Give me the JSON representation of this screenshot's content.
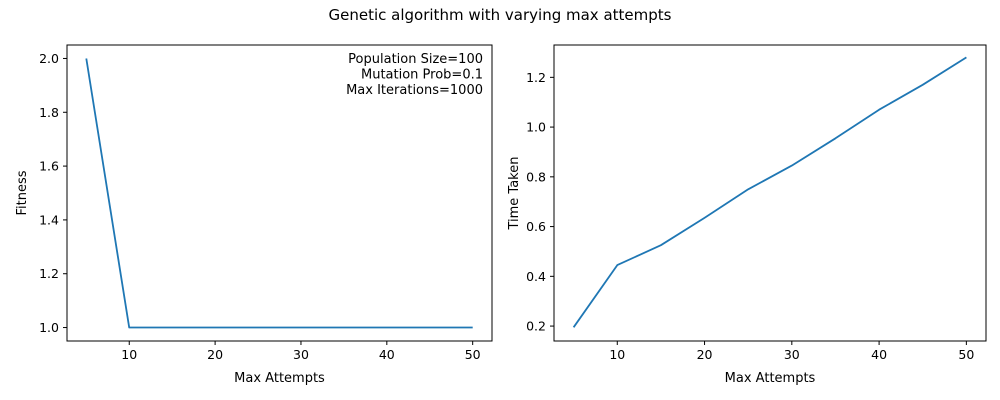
{
  "figure": {
    "suptitle": "Genetic algorithm with varying max attempts"
  },
  "chart_data": [
    {
      "type": "line",
      "xlabel": "Max Attempts",
      "ylabel": "Fitness",
      "xlim": [
        2.75,
        52.25
      ],
      "ylim": [
        0.95,
        2.05
      ],
      "xticks": [
        10,
        20,
        30,
        40,
        50
      ],
      "yticks": [
        1.0,
        1.2,
        1.4,
        1.6,
        1.8,
        2.0
      ],
      "ytick_decimals": 1,
      "grid": false,
      "color": "#1f77b4",
      "annotation": [
        "Population Size=100",
        "Mutation Prob=0.1",
        "Max Iterations=1000"
      ],
      "annotation_placement": "top-right",
      "series": [
        {
          "x": [
            5,
            10,
            15,
            20,
            25,
            30,
            35,
            40,
            45,
            50
          ],
          "values": [
            2.0,
            1.0,
            1.0,
            1.0,
            1.0,
            1.0,
            1.0,
            1.0,
            1.0,
            1.0
          ]
        }
      ]
    },
    {
      "type": "line",
      "xlabel": "Max Attempts",
      "ylabel": "Time Taken",
      "xlim": [
        2.75,
        52.25
      ],
      "ylim": [
        0.14,
        1.33
      ],
      "xticks": [
        10,
        20,
        30,
        40,
        50
      ],
      "yticks": [
        0.2,
        0.4,
        0.6,
        0.8,
        1.0,
        1.2
      ],
      "ytick_decimals": 1,
      "grid": false,
      "color": "#1f77b4",
      "series": [
        {
          "x": [
            5,
            10,
            15,
            20,
            25,
            30,
            35,
            40,
            45,
            50
          ],
          "values": [
            0.195,
            0.445,
            0.525,
            0.635,
            0.75,
            0.845,
            0.955,
            1.07,
            1.17,
            1.28
          ]
        }
      ]
    }
  ]
}
